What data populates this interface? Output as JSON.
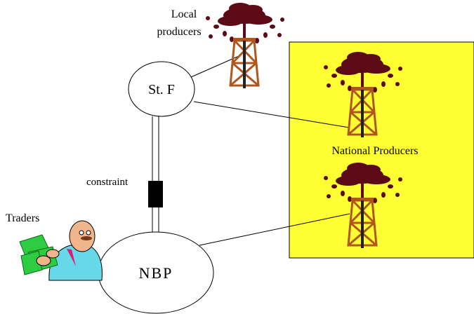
{
  "labels": {
    "local_producers": [
      "Local",
      "producers"
    ],
    "traders": "Traders",
    "constraint": "constraint",
    "national_producers": "National Producers"
  },
  "nodes": [
    {
      "label": "St. F"
    },
    {
      "label": "NBP"
    }
  ]
}
